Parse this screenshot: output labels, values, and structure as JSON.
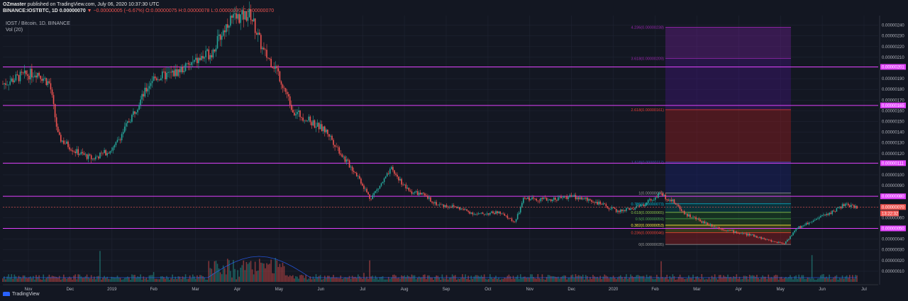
{
  "header": {
    "author": "OZmaster",
    "published": "published on TradingView.com, July 06, 2020 10:37:30 UTC",
    "symbol_line": "BINANCE:IOSTBTC, 1D 0.00000070",
    "change": "−0.00000005 (−6.67%)",
    "ohlc": "O:0.00000075 H:0.00000078 L:0.00000070 C:0.00000070"
  },
  "legend": {
    "title": "IOST / Bitcoin, 1D, BINANCE",
    "vol": "Vol (20)"
  },
  "colors": {
    "up": "#26a69a",
    "down": "#ef5350",
    "level": "#e040fb",
    "bg": "#131722"
  },
  "brand": "TradingView",
  "chart_data": {
    "type": "candlestick",
    "x_ticks": [
      "Nov",
      "Dec",
      "2019",
      "Feb",
      "Mar",
      "Apr",
      "May",
      "Jun",
      "Jul",
      "Aug",
      "Sep",
      "Oct",
      "Nov",
      "Dec",
      "2020",
      "Feb",
      "Mar",
      "Apr",
      "May",
      "Jun",
      "Jul"
    ],
    "y_ticks": [
      "0.00000240",
      "0.00000230",
      "0.00000220",
      "0.00000210",
      "0.00000200",
      "0.00000190",
      "0.00000180",
      "0.00000170",
      "0.00000160",
      "0.00000150",
      "0.00000140",
      "0.00000130",
      "0.00000120",
      "0.00000110",
      "0.00000100",
      "0.00000090",
      "0.00000080",
      "0.00000070",
      "0.00000060",
      "0.00000050",
      "0.00000040",
      "0.00000030",
      "0.00000020",
      "0.00000010"
    ],
    "ylim": [
      0.0,
      2.45e-06
    ],
    "horizontal_levels": [
      {
        "value": 2.01e-06,
        "label": "0.00000201"
      },
      {
        "value": 1.65e-06,
        "label": "0.00000165"
      },
      {
        "value": 1.11e-06,
        "label": "0.00000111"
      },
      {
        "value": 8e-07,
        "label": "0.00000080"
      },
      {
        "value": 5e-07,
        "label": "0.00000050"
      }
    ],
    "current_price": {
      "value": 7e-07,
      "label": "0.00000070",
      "timer": "13:22:32"
    },
    "fib_levels": [
      {
        "ratio": "4.236",
        "value": 2.38e-06,
        "label": "4.236(0.00000238)",
        "color": "#9c27b0"
      },
      {
        "ratio": "3.618",
        "value": 2.09e-06,
        "label": "3.618(0.00000209)",
        "color": "#9c27b0"
      },
      {
        "ratio": "2.618",
        "value": 1.61e-06,
        "label": "2.618(0.00000161)",
        "color": "#e53935"
      },
      {
        "ratio": "1.618",
        "value": 1.12e-06,
        "label": "1.618(0.00000112)",
        "color": "#3949ab"
      },
      {
        "ratio": "1",
        "value": 8.3e-07,
        "label": "1(0.00000083)",
        "color": "#9e9e9e"
      },
      {
        "ratio": "0.786",
        "value": 7.3e-07,
        "label": "0.786(0.00000073)",
        "color": "#00bcd4"
      },
      {
        "ratio": "0.618",
        "value": 6.5e-07,
        "label": "0.618(0.00000065)",
        "color": "#8bc34a"
      },
      {
        "ratio": "0.5",
        "value": 5.9e-07,
        "label": "0.5(0.00000059)",
        "color": "#4caf50"
      },
      {
        "ratio": "0.382",
        "value": 5.3e-07,
        "label": "0.382(0.00000053)",
        "color": "#ffeb3b"
      },
      {
        "ratio": "0.236",
        "value": 4.6e-07,
        "label": "0.236(0.00000046)",
        "color": "#f44336"
      },
      {
        "ratio": "0",
        "value": 3.5e-07,
        "label": "0(0.00000035)",
        "color": "#9e9e9e"
      }
    ],
    "price_path": [
      [
        0,
        1.85e-06
      ],
      [
        0.02,
        1.92e-06
      ],
      [
        0.04,
        1.96e-06
      ],
      [
        0.055,
        1.85e-06
      ],
      [
        0.065,
        1.35e-06
      ],
      [
        0.085,
        1.22e-06
      ],
      [
        0.105,
        1.15e-06
      ],
      [
        0.13,
        1.25e-06
      ],
      [
        0.16,
        1.68e-06
      ],
      [
        0.175,
        1.9e-06
      ],
      [
        0.2,
        1.95e-06
      ],
      [
        0.22,
        2.03e-06
      ],
      [
        0.245,
        2.15e-06
      ],
      [
        0.265,
        2.45e-06
      ],
      [
        0.29,
        2.5e-06
      ],
      [
        0.305,
        2.15e-06
      ],
      [
        0.32,
        2e-06
      ],
      [
        0.34,
        1.6e-06
      ],
      [
        0.36,
        1.5e-06
      ],
      [
        0.38,
        1.4e-06
      ],
      [
        0.4,
        1.15e-06
      ],
      [
        0.415,
        1e-06
      ],
      [
        0.43,
        7.8e-07
      ],
      [
        0.44,
        8.8e-07
      ],
      [
        0.455,
        1.05e-06
      ],
      [
        0.475,
        8.5e-07
      ],
      [
        0.49,
        8.2e-07
      ],
      [
        0.51,
        7.2e-07
      ],
      [
        0.53,
        7e-07
      ],
      [
        0.555,
        6.3e-07
      ],
      [
        0.58,
        6.5e-07
      ],
      [
        0.6,
        5.6e-07
      ],
      [
        0.61,
        7.8e-07
      ],
      [
        0.64,
        7.7e-07
      ],
      [
        0.665,
        8e-07
      ],
      [
        0.69,
        7.6e-07
      ],
      [
        0.72,
        6.6e-07
      ],
      [
        0.745,
        7e-07
      ],
      [
        0.77,
        8.2e-07
      ],
      [
        0.785,
        7.5e-07
      ],
      [
        0.8,
        6.3e-07
      ],
      [
        0.82,
        5.6e-07
      ],
      [
        0.84,
        5e-07
      ],
      [
        0.86,
        4.6e-07
      ],
      [
        0.88,
        4.3e-07
      ],
      [
        0.9,
        3.8e-07
      ],
      [
        0.915,
        3.6e-07
      ],
      [
        0.93,
        5e-07
      ],
      [
        0.95,
        5.8e-07
      ],
      [
        0.97,
        6.5e-07
      ],
      [
        0.985,
        7.2e-07
      ],
      [
        1.0,
        7e-07
      ]
    ]
  }
}
